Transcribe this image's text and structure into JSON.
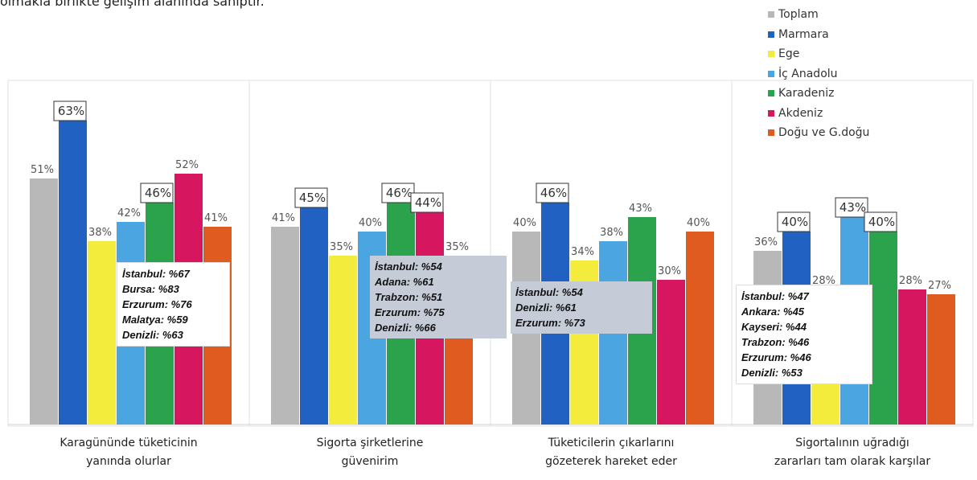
{
  "chart_data": {
    "type": "bar",
    "title": "olmakla birlikte gelişim alanında sahiptir.",
    "categories": [
      "Karagününde tüketicinin\nyanında olurlar",
      "Sigorta şirketlerine\ngüvenirim",
      "Tüketicilerin çıkarlarını\ngözeterek hareket eder",
      "Sigortalının uğradığı\nzararları tam olarak karşılar"
    ],
    "ylim": [
      0,
      70
    ],
    "series": [
      {
        "name": "Toplam",
        "color": "#b8b8b8",
        "values": [
          51,
          41,
          40,
          36
        ],
        "value_labels": [
          "51%",
          "41%",
          "40%",
          "36%"
        ],
        "boxed": [
          false,
          false,
          false,
          false
        ]
      },
      {
        "name": "Marmara",
        "color": "#2161c1",
        "values": [
          63,
          45,
          46,
          40
        ],
        "value_labels": [
          "63%",
          "45%",
          "46%",
          "40%"
        ],
        "boxed": [
          true,
          true,
          true,
          true
        ]
      },
      {
        "name": "Ege",
        "color": "#f4ec3c",
        "values": [
          38,
          35,
          34,
          28
        ],
        "value_labels": [
          "38%",
          "35%",
          "34%",
          "28%"
        ],
        "boxed": [
          false,
          false,
          false,
          false
        ]
      },
      {
        "name": "İç Anadolu",
        "color": "#4aa5e0",
        "values": [
          42,
          40,
          38,
          43
        ],
        "value_labels": [
          "42%",
          "40%",
          "38%",
          "43%"
        ],
        "boxed": [
          false,
          false,
          false,
          true
        ]
      },
      {
        "name": "Karadeniz",
        "color": "#2ba24c",
        "values": [
          46,
          46,
          43,
          40
        ],
        "value_labels": [
          "46%",
          "46%",
          "43%",
          "40%"
        ],
        "boxed": [
          true,
          true,
          false,
          true
        ]
      },
      {
        "name": "Akdeniz",
        "color": "#d61760",
        "values": [
          52,
          44,
          30,
          28
        ],
        "value_labels": [
          "52%",
          "44%",
          "30%",
          "28%"
        ],
        "boxed": [
          false,
          true,
          false,
          false
        ]
      },
      {
        "name": "Doğu ve G.doğu",
        "color": "#e05b20",
        "values": [
          41,
          35,
          40,
          27
        ],
        "value_labels": [
          "41%",
          "35%",
          "40%",
          "27%"
        ],
        "boxed": [
          false,
          false,
          false,
          false
        ]
      }
    ],
    "annotations": [
      [
        "İstanbul: %67",
        "Bursa: %83",
        "Erzurum: %76",
        "Malatya: %59",
        "Denizli: %63"
      ],
      [
        "İstanbul: %54",
        "Adana: %61",
        "Trabzon: %51",
        "Erzurum: %75",
        "Denizli: %66"
      ],
      [
        "İstanbul: %54",
        "Denizli: %61",
        "Erzurum: %73"
      ],
      [
        "İstanbul: %47",
        "Ankara: %45",
        "Kayseri: %44",
        "Trabzon: %46",
        "Erzurum: %46",
        "Denizli: %53"
      ]
    ]
  }
}
